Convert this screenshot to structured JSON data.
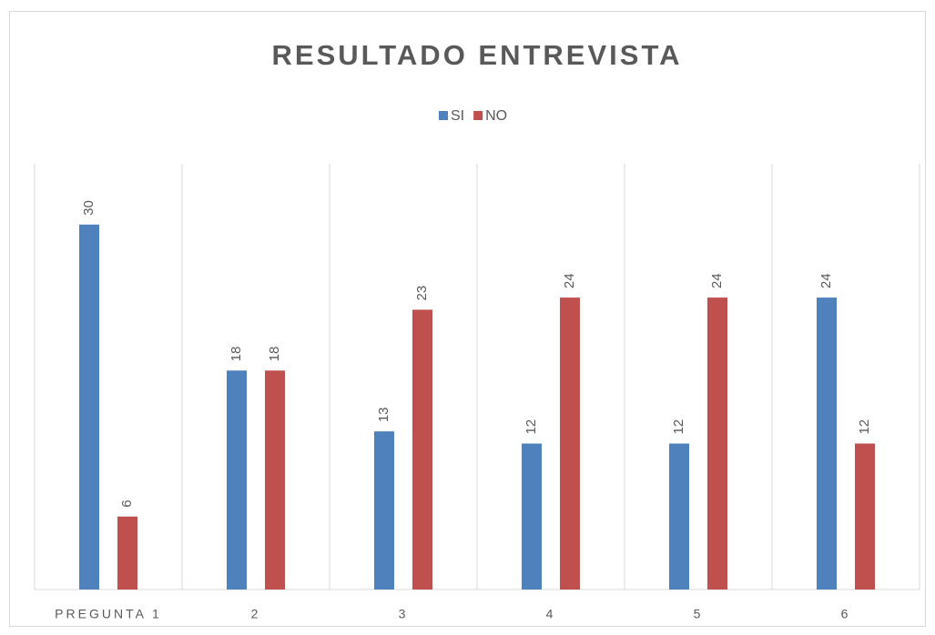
{
  "chart_data": {
    "type": "bar",
    "title": "RESULTADO ENTREVISTA",
    "categories": [
      "PREGUNTA 1",
      "2",
      "3",
      "4",
      "5",
      "6"
    ],
    "series": [
      {
        "name": "SI",
        "color": "#4f81bd",
        "values": [
          30,
          18,
          13,
          12,
          12,
          24
        ]
      },
      {
        "name": "NO",
        "color": "#c0504d",
        "values": [
          6,
          18,
          23,
          24,
          24,
          12
        ]
      }
    ],
    "ylim": [
      0,
      35
    ],
    "legend": "top"
  }
}
